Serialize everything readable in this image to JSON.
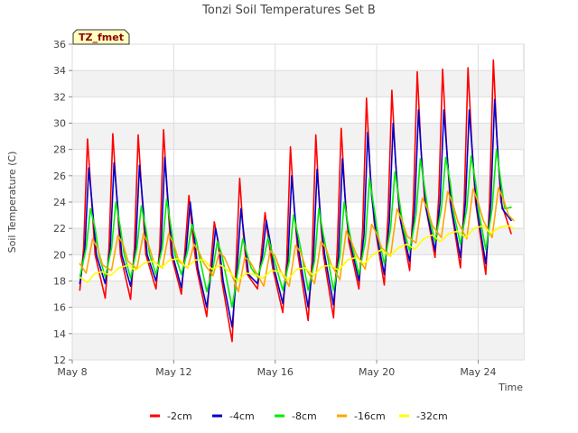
{
  "chart_data": {
    "type": "line",
    "title": "Tonzi Soil Temperatures Set B",
    "xlabel": "Time",
    "ylabel": "Soil Temperature (C)",
    "station_label": "TZ_fmet",
    "xlim": [
      8,
      25.8
    ],
    "ylim": [
      12,
      36
    ],
    "x_ticks": [
      {
        "value": 8,
        "label": "May 8"
      },
      {
        "value": 12,
        "label": "May 12"
      },
      {
        "value": 16,
        "label": "May 16"
      },
      {
        "value": 20,
        "label": "May 20"
      },
      {
        "value": 24,
        "label": "May 24"
      }
    ],
    "y_ticks": [
      12,
      14,
      16,
      18,
      20,
      22,
      24,
      26,
      28,
      30,
      32,
      34,
      36
    ],
    "grid": true,
    "legend_position": "bottom",
    "x_unit": "day of May",
    "series": [
      {
        "name": "-2cm",
        "color": "#ff0000",
        "x": [
          8.3,
          8.45,
          8.6,
          8.75,
          8.9,
          9.3,
          9.45,
          9.6,
          9.75,
          9.9,
          10.3,
          10.45,
          10.6,
          10.75,
          10.9,
          11.3,
          11.45,
          11.6,
          11.75,
          11.9,
          12.3,
          12.45,
          12.6,
          12.75,
          12.9,
          13.3,
          13.45,
          13.6,
          13.75,
          13.9,
          14.3,
          14.45,
          14.6,
          14.75,
          14.9,
          15.3,
          15.45,
          15.6,
          15.75,
          15.9,
          16.3,
          16.45,
          16.6,
          16.75,
          16.9,
          17.3,
          17.45,
          17.6,
          17.75,
          17.9,
          18.3,
          18.45,
          18.6,
          18.75,
          18.9,
          19.3,
          19.45,
          19.6,
          19.75,
          19.9,
          20.3,
          20.45,
          20.6,
          20.75,
          20.9,
          21.3,
          21.45,
          21.6,
          21.75,
          21.9,
          22.3,
          22.45,
          22.6,
          22.75,
          22.9,
          23.3,
          23.45,
          23.6,
          23.75,
          23.9,
          24.3,
          24.45,
          24.6,
          24.75,
          24.9,
          25.3
        ],
        "values": [
          17.3,
          20.5,
          28.8,
          24.5,
          20.0,
          16.7,
          20.5,
          29.2,
          24.5,
          20.0,
          16.6,
          20.5,
          29.1,
          24.5,
          20.0,
          17.4,
          20.5,
          29.5,
          24.5,
          20.0,
          17.0,
          20.5,
          24.5,
          21.5,
          19.0,
          15.3,
          19.0,
          22.5,
          21.0,
          18.0,
          13.4,
          19.0,
          25.8,
          21.5,
          18.5,
          17.4,
          20.0,
          23.2,
          21.0,
          19.0,
          15.6,
          19.5,
          28.2,
          23.5,
          20.0,
          15.0,
          19.5,
          29.1,
          23.5,
          20.0,
          15.2,
          20.5,
          29.6,
          24.5,
          21.0,
          17.4,
          22.0,
          31.9,
          26.0,
          22.5,
          17.7,
          23.0,
          32.5,
          27.0,
          23.0,
          18.8,
          24.0,
          33.9,
          28.0,
          24.0,
          19.8,
          24.5,
          34.1,
          28.5,
          24.0,
          19.0,
          24.0,
          34.2,
          28.5,
          24.0,
          18.5,
          24.0,
          34.8,
          28.5,
          24.0,
          21.6
        ]
      },
      {
        "name": "-4cm",
        "color": "#0000cc",
        "x": [
          8.3,
          8.5,
          8.65,
          8.8,
          8.95,
          9.3,
          9.5,
          9.65,
          9.8,
          9.95,
          10.3,
          10.5,
          10.65,
          10.8,
          10.95,
          11.3,
          11.5,
          11.65,
          11.8,
          11.95,
          12.3,
          12.5,
          12.65,
          12.8,
          12.95,
          13.3,
          13.5,
          13.65,
          13.8,
          13.95,
          14.3,
          14.5,
          14.65,
          14.8,
          14.95,
          15.3,
          15.5,
          15.65,
          15.8,
          15.95,
          16.3,
          16.5,
          16.65,
          16.8,
          16.95,
          17.3,
          17.5,
          17.65,
          17.8,
          17.95,
          18.3,
          18.5,
          18.65,
          18.8,
          18.95,
          19.3,
          19.5,
          19.65,
          19.8,
          19.95,
          20.3,
          20.5,
          20.65,
          20.8,
          20.95,
          21.3,
          21.5,
          21.65,
          21.8,
          21.95,
          22.3,
          22.5,
          22.65,
          22.8,
          22.95,
          23.3,
          23.5,
          23.65,
          23.8,
          23.95,
          24.3,
          24.5,
          24.65,
          24.8,
          24.95,
          25.3
        ],
        "values": [
          17.8,
          20.5,
          26.6,
          23.5,
          20.0,
          17.8,
          20.5,
          27.0,
          23.5,
          20.0,
          17.6,
          20.5,
          26.8,
          23.5,
          20.0,
          18.0,
          20.5,
          27.4,
          23.5,
          20.0,
          17.5,
          20.5,
          24.0,
          21.5,
          19.0,
          16.0,
          19.0,
          22.0,
          20.5,
          18.0,
          14.5,
          19.0,
          23.5,
          21.0,
          18.5,
          17.8,
          20.0,
          22.6,
          21.0,
          19.0,
          16.3,
          19.5,
          26.0,
          22.5,
          20.0,
          16.0,
          19.5,
          26.5,
          22.5,
          20.0,
          16.2,
          20.0,
          27.3,
          23.0,
          21.0,
          18.0,
          21.5,
          29.3,
          24.5,
          22.0,
          18.5,
          22.5,
          30.0,
          25.5,
          22.5,
          19.5,
          23.5,
          31.0,
          26.5,
          23.5,
          20.3,
          24.0,
          31.0,
          27.0,
          23.5,
          19.8,
          24.0,
          31.0,
          27.0,
          23.5,
          19.3,
          24.0,
          31.8,
          27.0,
          23.5,
          22.6
        ]
      },
      {
        "name": "-8cm",
        "color": "#00ee00",
        "x": [
          8.3,
          8.55,
          8.72,
          8.9,
          9.05,
          9.3,
          9.55,
          9.72,
          9.9,
          10.05,
          10.3,
          10.55,
          10.72,
          10.9,
          11.05,
          11.3,
          11.55,
          11.72,
          11.9,
          12.05,
          12.3,
          12.55,
          12.72,
          12.9,
          13.05,
          13.3,
          13.55,
          13.72,
          13.9,
          14.05,
          14.3,
          14.55,
          14.72,
          14.9,
          15.05,
          15.3,
          15.55,
          15.72,
          15.9,
          16.05,
          16.3,
          16.55,
          16.72,
          16.9,
          17.05,
          17.3,
          17.55,
          17.72,
          17.9,
          18.05,
          18.3,
          18.55,
          18.72,
          18.9,
          19.05,
          19.3,
          19.55,
          19.72,
          19.9,
          20.05,
          20.3,
          20.55,
          20.72,
          20.9,
          21.05,
          21.3,
          21.55,
          21.72,
          21.9,
          22.05,
          22.3,
          22.55,
          22.72,
          22.9,
          23.05,
          23.3,
          23.55,
          23.72,
          23.9,
          24.05,
          24.3,
          24.55,
          24.72,
          24.9,
          25.05,
          25.3
        ],
        "values": [
          18.3,
          20.5,
          23.5,
          22.0,
          20.0,
          18.3,
          20.5,
          24.0,
          22.0,
          20.0,
          18.2,
          20.5,
          23.7,
          22.0,
          20.0,
          18.5,
          20.5,
          24.2,
          22.0,
          20.0,
          18.5,
          20.3,
          22.3,
          21.0,
          19.5,
          17.2,
          19.0,
          21.0,
          20.0,
          18.5,
          16.0,
          19.0,
          21.2,
          20.0,
          19.0,
          18.3,
          19.8,
          21.3,
          20.0,
          19.0,
          17.3,
          19.5,
          23.0,
          21.5,
          20.0,
          17.3,
          19.5,
          23.5,
          21.5,
          20.0,
          17.3,
          19.8,
          24.0,
          22.0,
          20.5,
          18.5,
          21.0,
          25.8,
          23.5,
          21.5,
          19.3,
          22.0,
          26.3,
          24.0,
          22.0,
          20.3,
          23.0,
          27.3,
          25.0,
          23.0,
          21.0,
          23.5,
          27.4,
          25.5,
          23.0,
          20.8,
          23.5,
          27.5,
          25.5,
          23.0,
          20.4,
          23.5,
          28.0,
          25.5,
          23.5,
          23.6
        ]
      },
      {
        "name": "-16cm",
        "color": "#ffa500",
        "x": [
          8.3,
          8.55,
          8.8,
          9.0,
          9.2,
          9.55,
          9.8,
          10.0,
          10.2,
          10.55,
          10.8,
          11.0,
          11.2,
          11.55,
          11.8,
          12.0,
          12.2,
          12.55,
          12.8,
          13.0,
          13.2,
          13.55,
          13.8,
          14.0,
          14.2,
          14.55,
          14.8,
          15.0,
          15.2,
          15.55,
          15.8,
          16.0,
          16.2,
          16.55,
          16.8,
          17.0,
          17.2,
          17.55,
          17.8,
          18.0,
          18.2,
          18.55,
          18.8,
          19.0,
          19.2,
          19.55,
          19.8,
          20.0,
          20.2,
          20.55,
          20.8,
          21.0,
          21.2,
          21.55,
          21.8,
          22.0,
          22.2,
          22.55,
          22.8,
          23.0,
          23.2,
          23.55,
          23.8,
          24.0,
          24.2,
          24.55,
          24.8,
          25.0,
          25.2,
          25.4
        ],
        "values": [
          19.3,
          18.6,
          21.2,
          20.5,
          19.2,
          18.8,
          21.5,
          20.8,
          19.5,
          18.9,
          21.6,
          20.8,
          19.5,
          19.0,
          21.6,
          20.8,
          19.5,
          19.0,
          20.8,
          20.2,
          19.3,
          18.4,
          20.2,
          19.8,
          18.9,
          17.2,
          19.8,
          19.5,
          18.8,
          17.6,
          20.3,
          19.9,
          18.8,
          17.6,
          20.7,
          20.2,
          19.0,
          17.8,
          21.0,
          20.5,
          19.3,
          18.1,
          21.8,
          21.0,
          20.0,
          18.9,
          22.3,
          21.6,
          20.5,
          19.9,
          23.5,
          22.6,
          21.4,
          20.9,
          24.3,
          23.5,
          22.2,
          21.3,
          24.8,
          23.9,
          22.5,
          21.2,
          25.0,
          24.0,
          22.6,
          21.3,
          25.1,
          24.2,
          23.0,
          22.6
        ]
      },
      {
        "name": "-32cm",
        "color": "#ffff00",
        "x": [
          8.3,
          8.6,
          8.9,
          9.2,
          9.5,
          9.85,
          10.2,
          10.5,
          10.85,
          11.2,
          11.5,
          11.85,
          12.2,
          12.5,
          12.85,
          13.2,
          13.5,
          13.85,
          14.2,
          14.5,
          14.85,
          15.2,
          15.5,
          15.85,
          16.2,
          16.5,
          16.85,
          17.2,
          17.5,
          17.85,
          18.2,
          18.5,
          18.85,
          19.2,
          19.5,
          19.85,
          20.2,
          20.5,
          20.85,
          21.2,
          21.5,
          21.85,
          22.2,
          22.5,
          22.85,
          23.2,
          23.5,
          23.85,
          24.2,
          24.5,
          24.85,
          25.2,
          25.4
        ],
        "values": [
          18.3,
          17.9,
          18.6,
          18.7,
          18.4,
          19.0,
          19.2,
          18.8,
          19.4,
          19.5,
          19.0,
          19.6,
          19.7,
          19.0,
          19.6,
          19.6,
          18.9,
          19.2,
          18.7,
          18.0,
          18.6,
          18.5,
          18.2,
          18.8,
          18.7,
          18.1,
          18.9,
          19.0,
          18.4,
          19.1,
          19.2,
          18.8,
          19.6,
          19.8,
          19.3,
          20.0,
          20.4,
          19.9,
          20.5,
          20.8,
          20.4,
          21.2,
          21.5,
          21.0,
          21.6,
          21.8,
          21.3,
          22.0,
          22.2,
          21.6,
          22.1,
          22.2,
          22.0
        ]
      }
    ]
  }
}
